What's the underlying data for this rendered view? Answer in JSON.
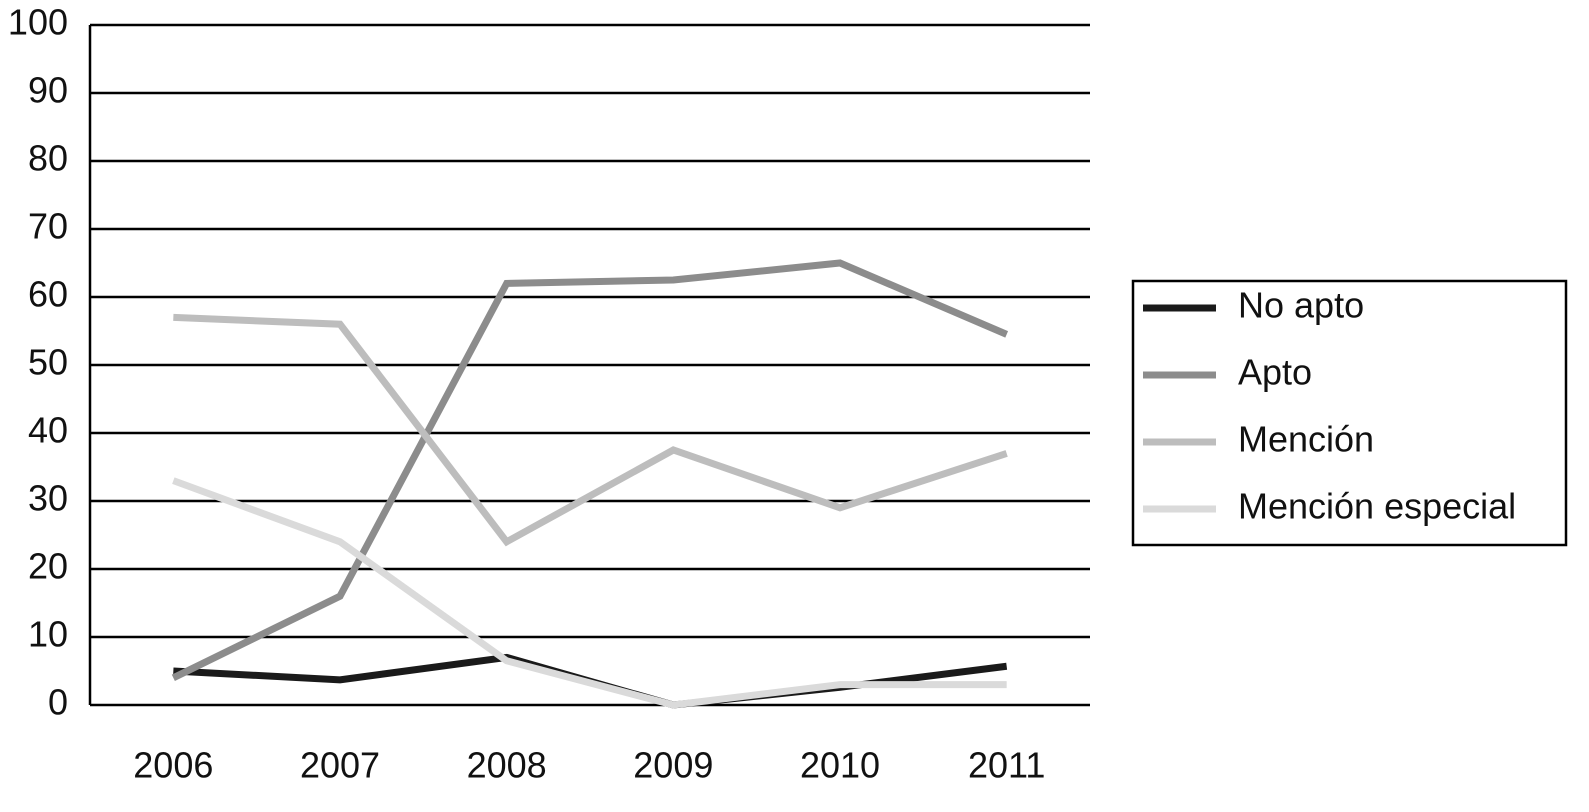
{
  "chart_data": {
    "type": "line",
    "categories": [
      "2006",
      "2007",
      "2008",
      "2009",
      "2010",
      "2011"
    ],
    "series": [
      {
        "name": "No apto",
        "color": "#1a1a1a",
        "values": [
          5,
          3.7,
          7,
          0,
          2.6,
          5.7
        ]
      },
      {
        "name": "Apto",
        "color": "#8c8c8c",
        "values": [
          4,
          16,
          62,
          62.5,
          65,
          54.5
        ]
      },
      {
        "name": "Mención",
        "color": "#bdbdbd",
        "values": [
          57,
          56,
          24,
          37.5,
          29,
          37
        ]
      },
      {
        "name": "Mención especial",
        "color": "#dadada",
        "values": [
          33,
          24,
          6.5,
          0,
          3,
          3
        ]
      }
    ],
    "ylim": [
      0,
      100
    ],
    "yticks": [
      0,
      10,
      20,
      30,
      40,
      50,
      60,
      70,
      80,
      90,
      100
    ],
    "grid": true,
    "legend": "right"
  }
}
